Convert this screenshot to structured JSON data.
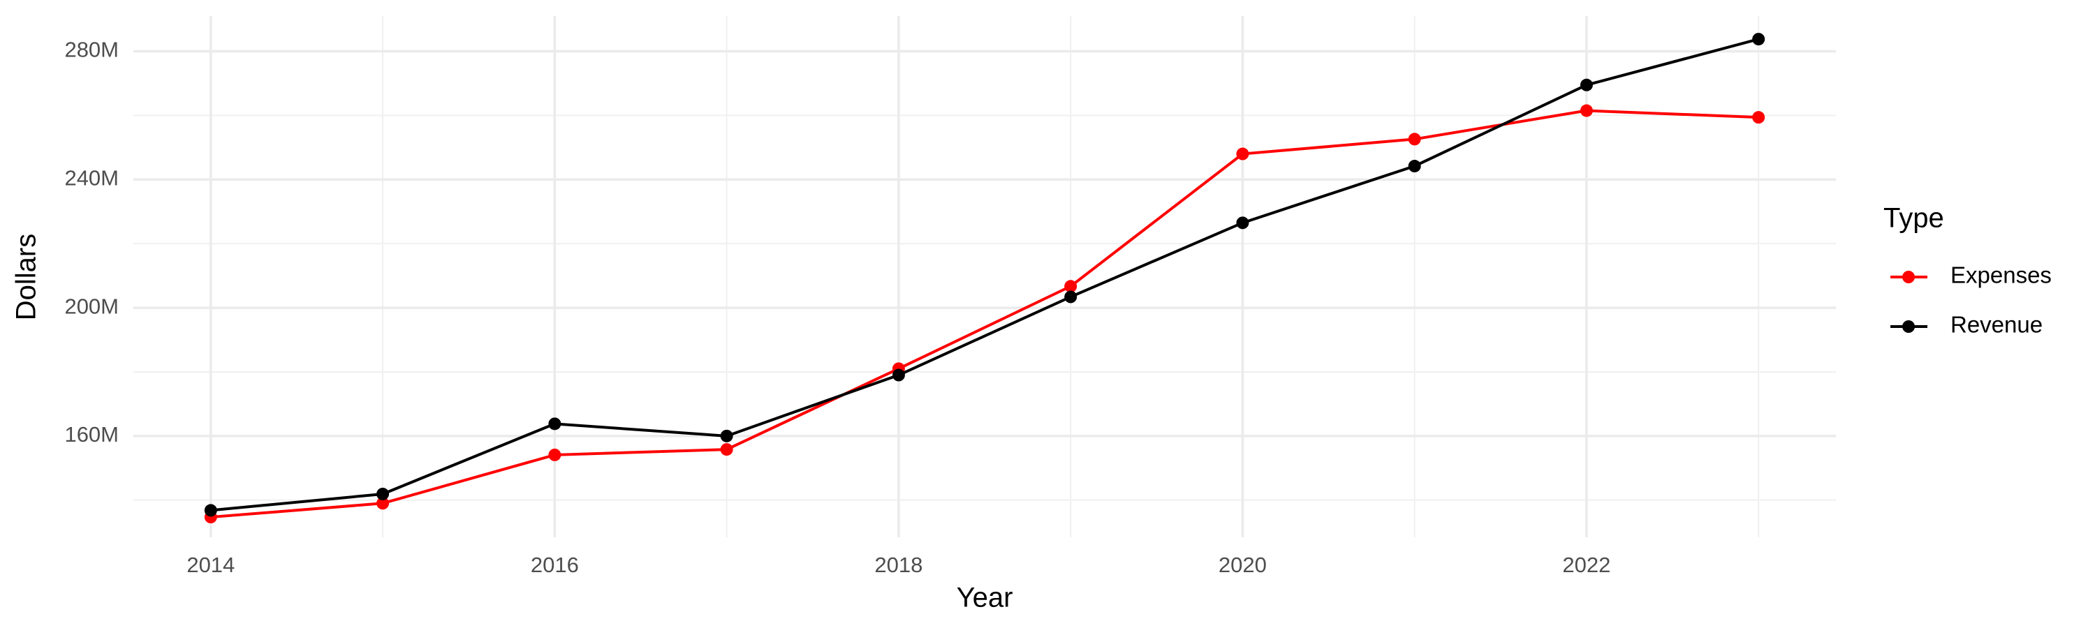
{
  "chart_data": {
    "type": "line",
    "x_label": "Year",
    "y_label": "Dollars",
    "legend_title": "Type",
    "x": [
      2014,
      2015,
      2016,
      2017,
      2018,
      2019,
      2020,
      2021,
      2022,
      2023
    ],
    "series": [
      {
        "name": "Expenses",
        "color": "#ff0000",
        "values": [
          134700000,
          139000000,
          154100000,
          155800000,
          181000000,
          206700000,
          248000000,
          252600000,
          261500000,
          259400000
        ]
      },
      {
        "name": "Revenue",
        "color": "#000000",
        "values": [
          136800000,
          141900000,
          163800000,
          160000000,
          179000000,
          203400000,
          226500000,
          244200000,
          269500000,
          283800000
        ]
      }
    ],
    "xlim": [
      2013.55,
      2023.45
    ],
    "xticks": [
      2014,
      2016,
      2018,
      2020,
      2022
    ],
    "ylim": [
      128400000,
      291000000
    ],
    "yticks": [
      {
        "value": 160000000,
        "label": "160M"
      },
      {
        "value": 200000000,
        "label": "200M"
      },
      {
        "value": 240000000,
        "label": "240M"
      },
      {
        "value": 280000000,
        "label": "280M"
      }
    ],
    "grid": true,
    "legend": "right"
  }
}
